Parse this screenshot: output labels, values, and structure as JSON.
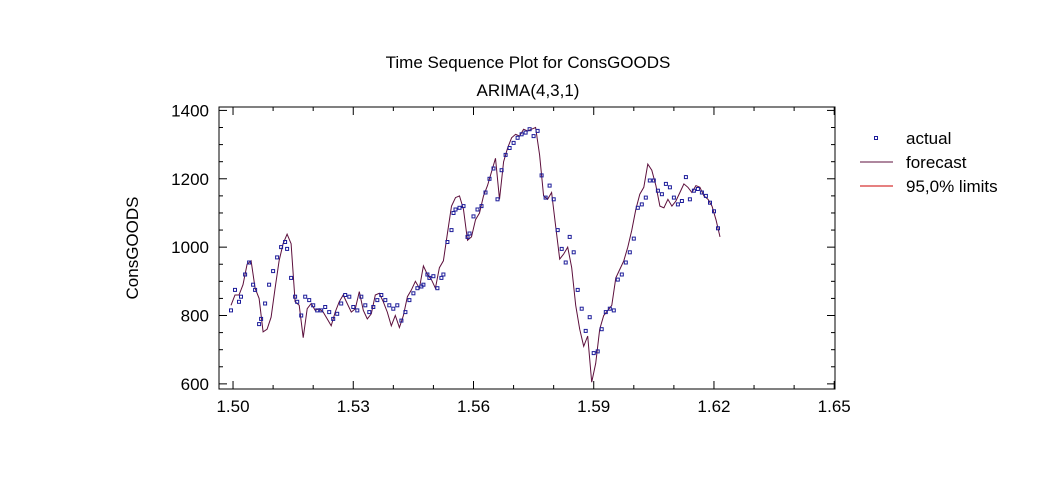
{
  "chart_data": {
    "type": "line",
    "title": "Time Sequence Plot for ConsGOODS",
    "subtitle": "ARIMA(4,3,1)",
    "ylabel": "ConsGOODS",
    "xlabel": "",
    "xlim": [
      1.4965,
      1.6502
    ],
    "ylim": [
      585,
      1410
    ],
    "x_ticks": [
      1.5,
      1.53,
      1.56,
      1.59,
      1.62,
      1.65
    ],
    "x_tick_labels": [
      "1.50",
      "1.53",
      "1.56",
      "1.59",
      "1.62",
      "1.65"
    ],
    "y_ticks": [
      600,
      800,
      1000,
      1200,
      1400
    ],
    "y_tick_labels": [
      "600",
      "800",
      "1000",
      "1200",
      "1400"
    ],
    "grid": false,
    "legend_position": "right",
    "colors": {
      "actual": "#1c1c9a",
      "forecast": "#5c0f3c",
      "limits": "#cc0000",
      "axis": "#000000"
    },
    "series": [
      {
        "name": "actual",
        "kind": "markers",
        "points": [
          [
            1.4995,
            815
          ],
          [
            1.5005,
            875
          ],
          [
            1.5015,
            840
          ],
          [
            1.502,
            855
          ],
          [
            1.503,
            920
          ],
          [
            1.504,
            955
          ],
          [
            1.505,
            890
          ],
          [
            1.5055,
            875
          ],
          [
            1.5065,
            775
          ],
          [
            1.507,
            790
          ],
          [
            1.508,
            835
          ],
          [
            1.509,
            890
          ],
          [
            1.51,
            930
          ],
          [
            1.511,
            970
          ],
          [
            1.512,
            1000
          ],
          [
            1.513,
            1015
          ],
          [
            1.5135,
            995
          ],
          [
            1.5145,
            910
          ],
          [
            1.5155,
            855
          ],
          [
            1.516,
            840
          ],
          [
            1.517,
            800
          ],
          [
            1.518,
            855
          ],
          [
            1.519,
            845
          ],
          [
            1.52,
            830
          ],
          [
            1.521,
            815
          ],
          [
            1.522,
            815
          ],
          [
            1.523,
            825
          ],
          [
            1.524,
            810
          ],
          [
            1.525,
            790
          ],
          [
            1.526,
            805
          ],
          [
            1.527,
            835
          ],
          [
            1.528,
            860
          ],
          [
            1.529,
            855
          ],
          [
            1.53,
            825
          ],
          [
            1.531,
            815
          ],
          [
            1.532,
            855
          ],
          [
            1.533,
            830
          ],
          [
            1.534,
            810
          ],
          [
            1.535,
            825
          ],
          [
            1.536,
            845
          ],
          [
            1.537,
            860
          ],
          [
            1.538,
            845
          ],
          [
            1.539,
            830
          ],
          [
            1.54,
            820
          ],
          [
            1.541,
            830
          ],
          [
            1.542,
            785
          ],
          [
            1.543,
            810
          ],
          [
            1.544,
            845
          ],
          [
            1.545,
            865
          ],
          [
            1.546,
            880
          ],
          [
            1.547,
            885
          ],
          [
            1.5475,
            890
          ],
          [
            1.5485,
            920
          ],
          [
            1.549,
            910
          ],
          [
            1.55,
            915
          ],
          [
            1.551,
            880
          ],
          [
            1.552,
            910
          ],
          [
            1.5525,
            920
          ],
          [
            1.5535,
            1015
          ],
          [
            1.5545,
            1050
          ],
          [
            1.555,
            1100
          ],
          [
            1.5555,
            1110
          ],
          [
            1.5565,
            1115
          ],
          [
            1.5575,
            1120
          ],
          [
            1.5585,
            1030
          ],
          [
            1.559,
            1040
          ],
          [
            1.56,
            1090
          ],
          [
            1.561,
            1110
          ],
          [
            1.562,
            1120
          ],
          [
            1.563,
            1160
          ],
          [
            1.564,
            1200
          ],
          [
            1.565,
            1230
          ],
          [
            1.566,
            1140
          ],
          [
            1.567,
            1225
          ],
          [
            1.568,
            1270
          ],
          [
            1.569,
            1290
          ],
          [
            1.57,
            1305
          ],
          [
            1.571,
            1320
          ],
          [
            1.572,
            1330
          ],
          [
            1.573,
            1335
          ],
          [
            1.574,
            1345
          ],
          [
            1.575,
            1325
          ],
          [
            1.576,
            1340
          ],
          [
            1.577,
            1210
          ],
          [
            1.578,
            1145
          ],
          [
            1.579,
            1180
          ],
          [
            1.58,
            1140
          ],
          [
            1.581,
            1050
          ],
          [
            1.582,
            995
          ],
          [
            1.583,
            955
          ],
          [
            1.584,
            1030
          ],
          [
            1.585,
            985
          ],
          [
            1.586,
            875
          ],
          [
            1.587,
            820
          ],
          [
            1.588,
            755
          ],
          [
            1.589,
            795
          ],
          [
            1.59,
            690
          ],
          [
            1.591,
            695
          ],
          [
            1.592,
            760
          ],
          [
            1.593,
            810
          ],
          [
            1.594,
            820
          ],
          [
            1.595,
            815
          ],
          [
            1.596,
            905
          ],
          [
            1.597,
            920
          ],
          [
            1.598,
            955
          ],
          [
            1.599,
            985
          ],
          [
            1.6,
            1025
          ],
          [
            1.601,
            1115
          ],
          [
            1.602,
            1125
          ],
          [
            1.603,
            1145
          ],
          [
            1.604,
            1195
          ],
          [
            1.605,
            1195
          ],
          [
            1.606,
            1165
          ],
          [
            1.607,
            1155
          ],
          [
            1.608,
            1185
          ],
          [
            1.609,
            1175
          ],
          [
            1.61,
            1145
          ],
          [
            1.611,
            1125
          ],
          [
            1.612,
            1135
          ],
          [
            1.613,
            1205
          ],
          [
            1.614,
            1140
          ],
          [
            1.615,
            1165
          ],
          [
            1.616,
            1170
          ],
          [
            1.617,
            1160
          ],
          [
            1.618,
            1150
          ],
          [
            1.619,
            1130
          ],
          [
            1.62,
            1105
          ],
          [
            1.621,
            1055
          ]
        ]
      },
      {
        "name": "forecast",
        "kind": "line",
        "points": [
          [
            1.4995,
            830
          ],
          [
            1.5005,
            860
          ],
          [
            1.5015,
            860
          ],
          [
            1.5025,
            890
          ],
          [
            1.5035,
            950
          ],
          [
            1.5045,
            960
          ],
          [
            1.5055,
            880
          ],
          [
            1.5065,
            850
          ],
          [
            1.5075,
            752
          ],
          [
            1.5085,
            760
          ],
          [
            1.5095,
            795
          ],
          [
            1.5105,
            880
          ],
          [
            1.5115,
            960
          ],
          [
            1.5125,
            1010
          ],
          [
            1.5135,
            1038
          ],
          [
            1.5145,
            1010
          ],
          [
            1.5155,
            840
          ],
          [
            1.5165,
            830
          ],
          [
            1.5175,
            735
          ],
          [
            1.5185,
            820
          ],
          [
            1.5195,
            835
          ],
          [
            1.5205,
            815
          ],
          [
            1.5215,
            820
          ],
          [
            1.5225,
            810
          ],
          [
            1.5235,
            790
          ],
          [
            1.5245,
            770
          ],
          [
            1.5255,
            810
          ],
          [
            1.5265,
            840
          ],
          [
            1.5275,
            860
          ],
          [
            1.5285,
            835
          ],
          [
            1.5295,
            810
          ],
          [
            1.5305,
            820
          ],
          [
            1.5315,
            870
          ],
          [
            1.5325,
            815
          ],
          [
            1.5335,
            790
          ],
          [
            1.5345,
            805
          ],
          [
            1.5355,
            860
          ],
          [
            1.5365,
            865
          ],
          [
            1.5375,
            840
          ],
          [
            1.5385,
            810
          ],
          [
            1.5395,
            770
          ],
          [
            1.5405,
            800
          ],
          [
            1.5415,
            765
          ],
          [
            1.5425,
            800
          ],
          [
            1.5435,
            855
          ],
          [
            1.5445,
            875
          ],
          [
            1.5455,
            900
          ],
          [
            1.5465,
            880
          ],
          [
            1.5475,
            945
          ],
          [
            1.5485,
            920
          ],
          [
            1.5495,
            905
          ],
          [
            1.5505,
            880
          ],
          [
            1.5515,
            940
          ],
          [
            1.5525,
            960
          ],
          [
            1.5535,
            1040
          ],
          [
            1.5545,
            1120
          ],
          [
            1.5555,
            1145
          ],
          [
            1.5565,
            1150
          ],
          [
            1.5575,
            1110
          ],
          [
            1.5585,
            1020
          ],
          [
            1.5595,
            1030
          ],
          [
            1.5605,
            1080
          ],
          [
            1.5615,
            1100
          ],
          [
            1.5625,
            1150
          ],
          [
            1.5635,
            1180
          ],
          [
            1.5645,
            1220
          ],
          [
            1.5655,
            1260
          ],
          [
            1.5665,
            1140
          ],
          [
            1.5675,
            1250
          ],
          [
            1.5685,
            1290
          ],
          [
            1.5695,
            1320
          ],
          [
            1.5705,
            1330
          ],
          [
            1.5715,
            1325
          ],
          [
            1.5725,
            1345
          ],
          [
            1.5735,
            1340
          ],
          [
            1.5745,
            1345
          ],
          [
            1.5755,
            1350
          ],
          [
            1.5765,
            1270
          ],
          [
            1.5775,
            1150
          ],
          [
            1.5785,
            1140
          ],
          [
            1.5795,
            1160
          ],
          [
            1.5805,
            1060
          ],
          [
            1.5815,
            965
          ],
          [
            1.5825,
            980
          ],
          [
            1.5835,
            1000
          ],
          [
            1.5845,
            940
          ],
          [
            1.5855,
            830
          ],
          [
            1.5865,
            760
          ],
          [
            1.5875,
            710
          ],
          [
            1.5885,
            740
          ],
          [
            1.5895,
            605
          ],
          [
            1.5905,
            660
          ],
          [
            1.5915,
            760
          ],
          [
            1.5925,
            800
          ],
          [
            1.5935,
            815
          ],
          [
            1.5945,
            830
          ],
          [
            1.5955,
            910
          ],
          [
            1.5965,
            935
          ],
          [
            1.5975,
            960
          ],
          [
            1.5985,
            1000
          ],
          [
            1.5995,
            1050
          ],
          [
            1.6005,
            1110
          ],
          [
            1.6015,
            1155
          ],
          [
            1.6025,
            1175
          ],
          [
            1.6035,
            1243
          ],
          [
            1.6045,
            1225
          ],
          [
            1.6055,
            1180
          ],
          [
            1.6065,
            1120
          ],
          [
            1.6075,
            1115
          ],
          [
            1.6085,
            1140
          ],
          [
            1.6095,
            1120
          ],
          [
            1.6105,
            1135
          ],
          [
            1.6115,
            1160
          ],
          [
            1.6125,
            1185
          ],
          [
            1.6135,
            1175
          ],
          [
            1.6145,
            1160
          ],
          [
            1.6155,
            1180
          ],
          [
            1.6165,
            1175
          ],
          [
            1.6175,
            1150
          ],
          [
            1.6185,
            1140
          ],
          [
            1.6195,
            1120
          ],
          [
            1.6205,
            1080
          ],
          [
            1.6215,
            1030
          ]
        ]
      },
      {
        "name": "95,0% limits",
        "kind": "line",
        "points": []
      }
    ]
  }
}
